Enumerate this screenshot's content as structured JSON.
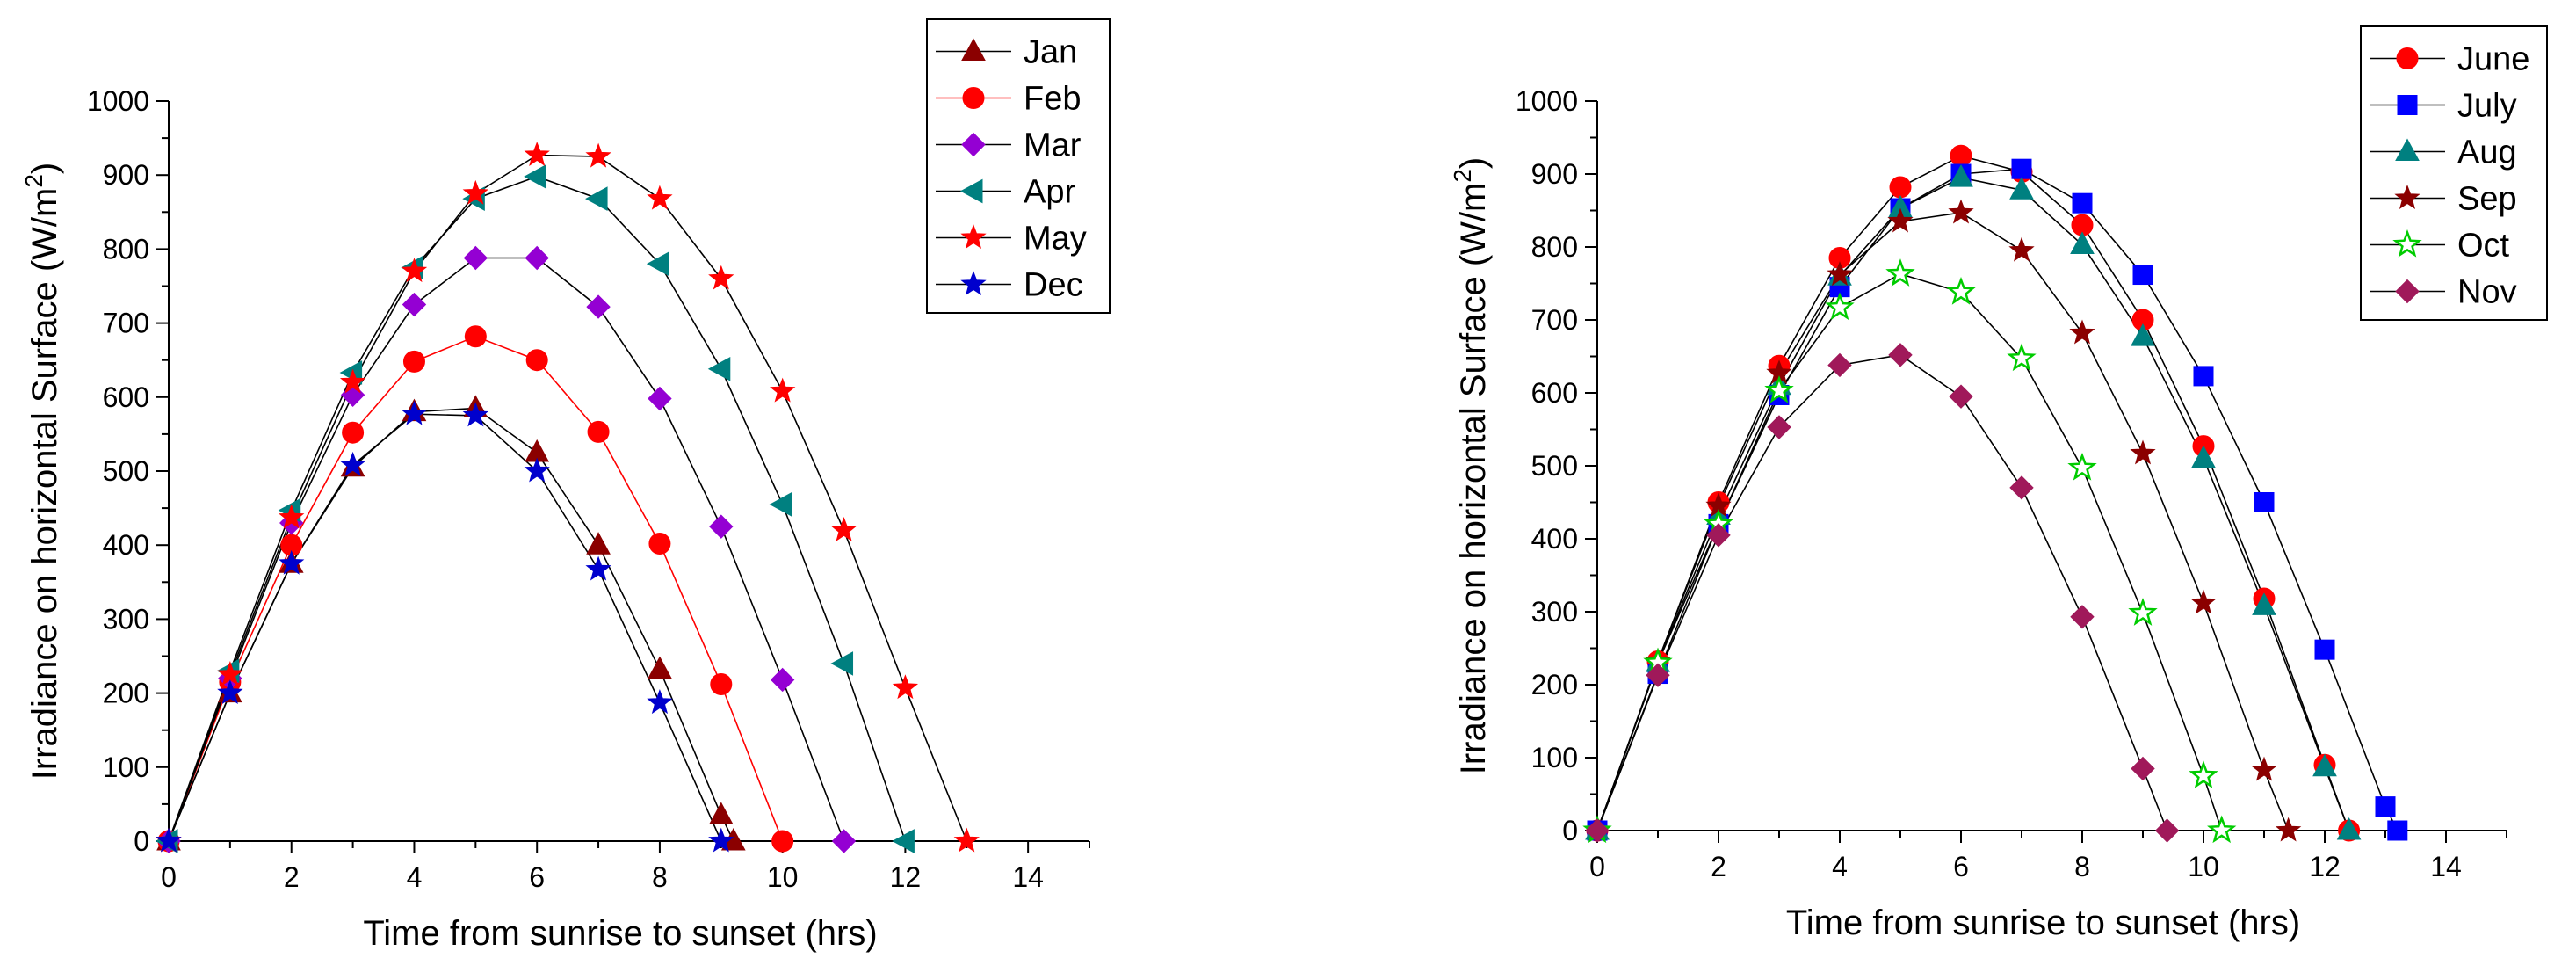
{
  "chart_data": [
    {
      "type": "line",
      "title": "",
      "xlabel": "Time from sunrise to sunset (hrs)",
      "ylabel_main": "Irradiance on horizontal Surface (W/m",
      "ylabel_sup": "2",
      "ylabel_end": ")",
      "xlim": [
        0,
        15
      ],
      "ylim": [
        0,
        1000
      ],
      "xticks": [
        0,
        2,
        4,
        6,
        8,
        10,
        12,
        14
      ],
      "yticks": [
        0,
        100,
        200,
        300,
        400,
        500,
        600,
        700,
        800,
        900,
        1000
      ],
      "grid": false,
      "legend_position": "top-right",
      "series": [
        {
          "name": "Jan",
          "marker": "triangle-up",
          "color": "#8b0000",
          "line_color": "#000000",
          "x": [
            0,
            1,
            2,
            3,
            4,
            5,
            6,
            7,
            8,
            9,
            9.2
          ],
          "y": [
            0,
            200,
            375,
            505,
            580,
            585,
            525,
            400,
            232,
            35,
            0
          ]
        },
        {
          "name": "Feb",
          "marker": "circle",
          "color": "#ff0000",
          "line_color": "#ff0000",
          "x": [
            0,
            1,
            2,
            3,
            4,
            5,
            6,
            7,
            8,
            9,
            10
          ],
          "y": [
            0,
            215,
            400,
            552,
            648,
            682,
            650,
            553,
            402,
            212,
            0
          ]
        },
        {
          "name": "Mar",
          "marker": "diamond",
          "color": "#9400d3",
          "line_color": "#000000",
          "x": [
            0,
            1,
            2,
            3,
            4,
            5,
            6,
            7,
            8,
            9,
            10,
            11
          ],
          "y": [
            0,
            220,
            430,
            603,
            725,
            788,
            788,
            722,
            598,
            425,
            218,
            0
          ]
        },
        {
          "name": "Apr",
          "marker": "triangle-left",
          "color": "#008080",
          "line_color": "#000000",
          "x": [
            0,
            1,
            2,
            3,
            4,
            5,
            6,
            7,
            8,
            9,
            10,
            11,
            12
          ],
          "y": [
            0,
            230,
            447,
            633,
            775,
            868,
            898,
            868,
            780,
            638,
            455,
            240,
            0
          ]
        },
        {
          "name": "May",
          "marker": "star",
          "color": "#ff0000",
          "line_color": "#000000",
          "x": [
            0,
            1,
            2,
            3,
            4,
            5,
            6,
            7,
            8,
            9,
            10,
            11,
            12,
            13
          ],
          "y": [
            0,
            225,
            437,
            620,
            770,
            875,
            927,
            925,
            868,
            760,
            608,
            420,
            207,
            0
          ]
        },
        {
          "name": "Dec",
          "marker": "star",
          "color": "#0000cd",
          "line_color": "#000000",
          "x": [
            0,
            1,
            2,
            3,
            4,
            5,
            6,
            7,
            8,
            9
          ],
          "y": [
            0,
            200,
            375,
            508,
            577,
            575,
            500,
            367,
            187,
            0
          ]
        }
      ]
    },
    {
      "type": "line",
      "title": "",
      "xlabel": "Time from sunrise to sunset (hrs)",
      "ylabel_main": "Irradiance on horizontal Surface (W/m",
      "ylabel_sup": "2",
      "ylabel_end": ")",
      "xlim": [
        0,
        15
      ],
      "ylim": [
        0,
        1000
      ],
      "xticks": [
        0,
        2,
        4,
        6,
        8,
        10,
        12,
        14
      ],
      "yticks": [
        0,
        100,
        200,
        300,
        400,
        500,
        600,
        700,
        800,
        900,
        1000
      ],
      "grid": false,
      "legend_position": "top-right",
      "series": [
        {
          "name": "June",
          "marker": "circle",
          "color": "#ff0000",
          "line_color": "#000000",
          "x": [
            0,
            1,
            2,
            3,
            4,
            5,
            6,
            7,
            8,
            9,
            10,
            11,
            12,
            12.4
          ],
          "y": [
            0,
            232,
            450,
            637,
            785,
            882,
            925,
            903,
            830,
            700,
            527,
            318,
            90,
            0
          ]
        },
        {
          "name": "July",
          "marker": "square",
          "color": "#0000ff",
          "line_color": "#000000",
          "x": [
            0,
            1,
            2,
            3,
            4,
            5,
            6,
            7,
            8,
            9,
            10,
            11,
            12,
            13,
            13.2
          ],
          "y": [
            0,
            215,
            420,
            597,
            745,
            853,
            900,
            907,
            860,
            762,
            623,
            450,
            248,
            33,
            0
          ]
        },
        {
          "name": "Aug",
          "marker": "triangle-up",
          "color": "#008080",
          "line_color": "#000000",
          "x": [
            0,
            1,
            2,
            3,
            4,
            5,
            6,
            7,
            8,
            9,
            10,
            11,
            12,
            12.4
          ],
          "y": [
            0,
            230,
            432,
            610,
            760,
            853,
            895,
            878,
            803,
            677,
            510,
            308,
            87,
            0
          ]
        },
        {
          "name": "Sep",
          "marker": "star",
          "color": "#8b0000",
          "line_color": "#000000",
          "x": [
            0,
            1,
            2,
            3,
            4,
            5,
            6,
            7,
            8,
            9,
            10,
            11,
            11.4
          ],
          "y": [
            0,
            232,
            445,
            627,
            762,
            835,
            847,
            795,
            682,
            517,
            312,
            83,
            0
          ]
        },
        {
          "name": "Oct",
          "marker": "star-open",
          "color": "#00cc00",
          "line_color": "#000000",
          "x": [
            0,
            1,
            2,
            3,
            4,
            5,
            6,
            7,
            8,
            9,
            10,
            10.3
          ],
          "y": [
            0,
            230,
            420,
            603,
            717,
            763,
            738,
            647,
            497,
            298,
            75,
            0
          ]
        },
        {
          "name": "Nov",
          "marker": "diamond",
          "color": "#a0195a",
          "line_color": "#000000",
          "x": [
            0,
            1,
            2,
            3,
            4,
            5,
            6,
            7,
            8,
            9,
            9.4
          ],
          "y": [
            0,
            213,
            405,
            553,
            638,
            652,
            595,
            470,
            293,
            85,
            0
          ]
        }
      ]
    }
  ]
}
